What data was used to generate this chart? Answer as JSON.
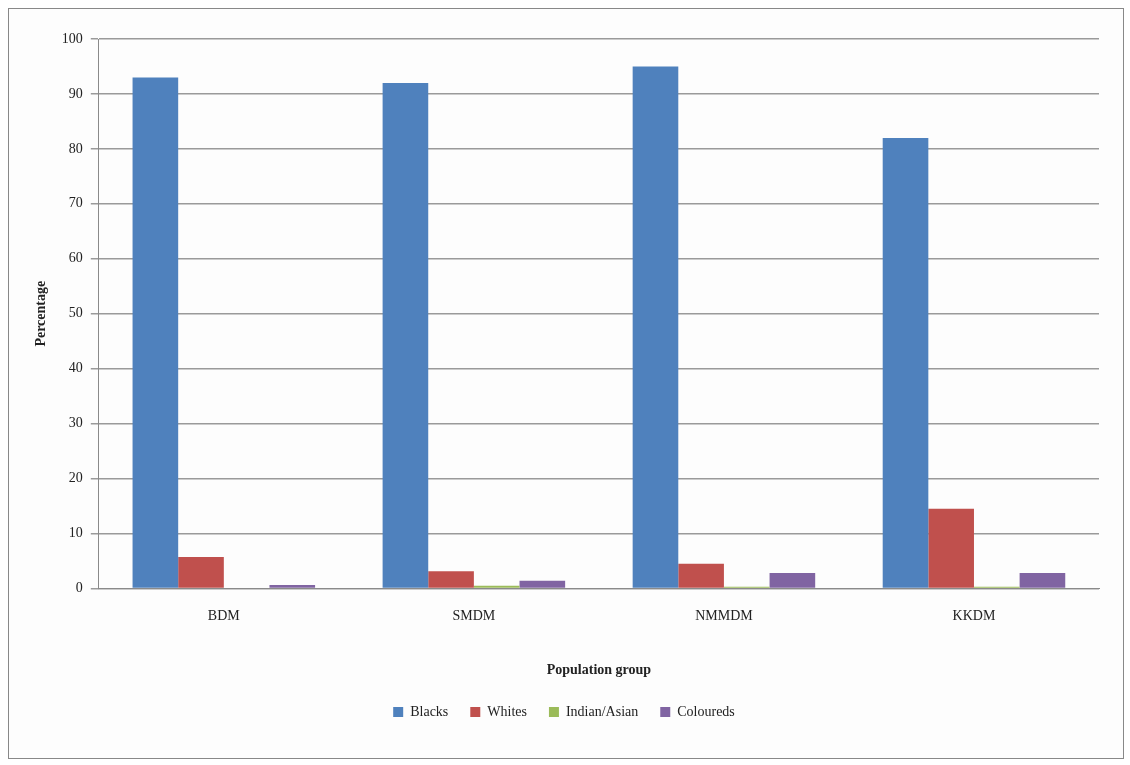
{
  "chart_data": {
    "type": "bar",
    "xlabel": "Population group",
    "ylabel": "Percentage",
    "categories": [
      "BDM",
      "SMDM",
      "NMMDM",
      "KKDM"
    ],
    "series": [
      {
        "name": "Blacks",
        "color": "#4f81bd",
        "values": [
          93,
          92,
          95,
          82
        ]
      },
      {
        "name": "Whites",
        "color": "#c0504d",
        "values": [
          5.7,
          3.1,
          4.5,
          14.5
        ]
      },
      {
        "name": "Indian/Asian",
        "color": "#9bbb59",
        "values": [
          0.1,
          0.5,
          0.3,
          0.3
        ]
      },
      {
        "name": "Coloureds",
        "color": "#8064a2",
        "values": [
          0.6,
          1.4,
          2.8,
          2.8
        ]
      }
    ],
    "ylim": [
      0,
      100
    ],
    "yticks": [
      0,
      10,
      20,
      30,
      40,
      50,
      60,
      70,
      80,
      90,
      100
    ],
    "grid": "y",
    "legend": "bottom"
  }
}
